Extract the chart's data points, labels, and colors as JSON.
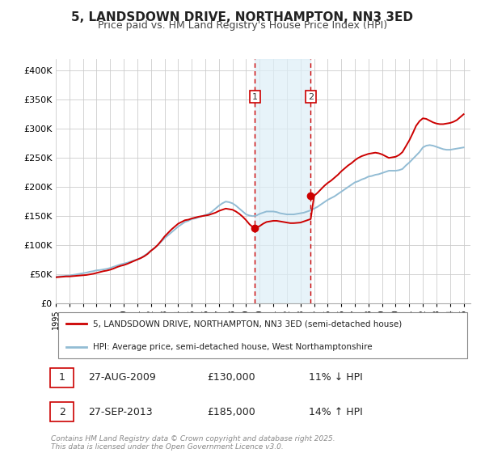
{
  "title": "5, LANDSDOWN DRIVE, NORTHAMPTON, NN3 3ED",
  "subtitle": "Price paid vs. HM Land Registry's House Price Index (HPI)",
  "title_fontsize": 11,
  "subtitle_fontsize": 9,
  "ylim": [
    0,
    420000
  ],
  "xlim": [
    1995,
    2025.5
  ],
  "background_color": "#ffffff",
  "plot_bg_color": "#ffffff",
  "grid_color": "#cccccc",
  "legend_label_red": "5, LANDSDOWN DRIVE, NORTHAMPTON, NN3 3ED (semi-detached house)",
  "legend_label_blue": "HPI: Average price, semi-detached house, West Northamptonshire",
  "red_color": "#cc0000",
  "blue_color": "#92bcd4",
  "event1_x": 2009.65,
  "event2_x": 2013.74,
  "event1_price": 130000,
  "event2_price": 185000,
  "footer_text": "Contains HM Land Registry data © Crown copyright and database right 2025.\nThis data is licensed under the Open Government Licence v3.0.",
  "table_rows": [
    [
      "1",
      "27-AUG-2009",
      "£130,000",
      "11% ↓ HPI"
    ],
    [
      "2",
      "27-SEP-2013",
      "£185,000",
      "14% ↑ HPI"
    ]
  ],
  "yticks": [
    0,
    50000,
    100000,
    150000,
    200000,
    250000,
    300000,
    350000,
    400000
  ],
  "ytick_labels": [
    "£0",
    "£50K",
    "£100K",
    "£150K",
    "£200K",
    "£250K",
    "£300K",
    "£350K",
    "£400K"
  ],
  "hpi_years": [
    1995.0,
    1995.25,
    1995.5,
    1995.75,
    1996.0,
    1996.25,
    1996.5,
    1996.75,
    1997.0,
    1997.25,
    1997.5,
    1997.75,
    1998.0,
    1998.25,
    1998.5,
    1998.75,
    1999.0,
    1999.25,
    1999.5,
    1999.75,
    2000.0,
    2000.25,
    2000.5,
    2000.75,
    2001.0,
    2001.25,
    2001.5,
    2001.75,
    2002.0,
    2002.25,
    2002.5,
    2002.75,
    2003.0,
    2003.25,
    2003.5,
    2003.75,
    2004.0,
    2004.25,
    2004.5,
    2004.75,
    2005.0,
    2005.25,
    2005.5,
    2005.75,
    2006.0,
    2006.25,
    2006.5,
    2006.75,
    2007.0,
    2007.25,
    2007.5,
    2007.75,
    2008.0,
    2008.25,
    2008.5,
    2008.75,
    2009.0,
    2009.25,
    2009.5,
    2009.75,
    2010.0,
    2010.25,
    2010.5,
    2010.75,
    2011.0,
    2011.25,
    2011.5,
    2011.75,
    2012.0,
    2012.25,
    2012.5,
    2012.75,
    2013.0,
    2013.25,
    2013.5,
    2013.75,
    2014.0,
    2014.25,
    2014.5,
    2014.75,
    2015.0,
    2015.25,
    2015.5,
    2015.75,
    2016.0,
    2016.25,
    2016.5,
    2016.75,
    2017.0,
    2017.25,
    2017.5,
    2017.75,
    2018.0,
    2018.25,
    2018.5,
    2018.75,
    2019.0,
    2019.25,
    2019.5,
    2019.75,
    2020.0,
    2020.25,
    2020.5,
    2020.75,
    2021.0,
    2021.25,
    2021.5,
    2021.75,
    2022.0,
    2022.25,
    2022.5,
    2022.75,
    2023.0,
    2023.25,
    2023.5,
    2023.75,
    2024.0,
    2024.25,
    2024.5,
    2024.75,
    2025.0
  ],
  "hpi_vals": [
    46000,
    46500,
    47000,
    47500,
    48000,
    49000,
    50000,
    51000,
    52000,
    53000,
    54500,
    55500,
    57000,
    57500,
    58500,
    59500,
    61000,
    63000,
    65000,
    67000,
    68500,
    70000,
    72000,
    74000,
    76000,
    78000,
    82000,
    86000,
    91000,
    95000,
    100000,
    106000,
    112000,
    117000,
    122000,
    127000,
    132000,
    136000,
    140000,
    142000,
    145000,
    146000,
    148000,
    150000,
    152000,
    154000,
    158000,
    163000,
    168000,
    172000,
    175000,
    174000,
    172000,
    168000,
    163000,
    158000,
    153000,
    151000,
    150000,
    151000,
    154000,
    156000,
    158000,
    158000,
    158000,
    157000,
    155000,
    154000,
    153000,
    153000,
    153000,
    154000,
    155000,
    156000,
    158000,
    160000,
    163000,
    166000,
    170000,
    174000,
    178000,
    181000,
    184000,
    188000,
    192000,
    196000,
    200000,
    204000,
    208000,
    210000,
    213000,
    215000,
    218000,
    219000,
    221000,
    222000,
    224000,
    226000,
    228000,
    228000,
    228000,
    229000,
    231000,
    237000,
    242000,
    248000,
    254000,
    260000,
    268000,
    271000,
    272000,
    271000,
    269000,
    267000,
    265000,
    264000,
    264000,
    265000,
    266000,
    267000,
    268000
  ],
  "price_years": [
    1995.0,
    1995.25,
    1995.5,
    1995.75,
    1996.0,
    1996.25,
    1996.5,
    1996.75,
    1997.0,
    1997.25,
    1997.5,
    1997.75,
    1998.0,
    1998.25,
    1998.5,
    1998.75,
    1999.0,
    1999.25,
    1999.5,
    1999.75,
    2000.0,
    2000.25,
    2000.5,
    2000.75,
    2001.0,
    2001.25,
    2001.5,
    2001.75,
    2002.0,
    2002.25,
    2002.5,
    2002.75,
    2003.0,
    2003.25,
    2003.5,
    2003.75,
    2004.0,
    2004.25,
    2004.5,
    2004.75,
    2005.0,
    2005.25,
    2005.5,
    2005.75,
    2006.0,
    2006.25,
    2006.5,
    2006.75,
    2007.0,
    2007.25,
    2007.5,
    2007.75,
    2008.0,
    2008.25,
    2008.5,
    2008.75,
    2009.0,
    2009.25,
    2009.5,
    2009.75,
    2010.0,
    2010.25,
    2010.5,
    2010.75,
    2011.0,
    2011.25,
    2011.5,
    2011.75,
    2012.0,
    2012.25,
    2012.5,
    2012.75,
    2013.0,
    2013.25,
    2013.5,
    2013.75,
    2014.0,
    2014.25,
    2014.5,
    2014.75,
    2015.0,
    2015.25,
    2015.5,
    2015.75,
    2016.0,
    2016.25,
    2016.5,
    2016.75,
    2017.0,
    2017.25,
    2017.5,
    2017.75,
    2018.0,
    2018.25,
    2018.5,
    2018.75,
    2019.0,
    2019.25,
    2019.5,
    2019.75,
    2020.0,
    2020.25,
    2020.5,
    2020.75,
    2021.0,
    2021.25,
    2021.5,
    2021.75,
    2022.0,
    2022.25,
    2022.5,
    2022.75,
    2023.0,
    2023.25,
    2023.5,
    2023.75,
    2024.0,
    2024.25,
    2024.5,
    2024.75,
    2025.0
  ],
  "price_vals": [
    45000,
    45500,
    46000,
    46500,
    46500,
    47000,
    47500,
    48000,
    48500,
    49000,
    50000,
    51000,
    52500,
    54000,
    55500,
    56500,
    58000,
    60000,
    62500,
    64500,
    66000,
    68000,
    70500,
    73000,
    75500,
    78000,
    81000,
    85000,
    90500,
    95000,
    100500,
    107500,
    115000,
    121000,
    127000,
    132000,
    137000,
    140000,
    143000,
    144000,
    146000,
    147500,
    149000,
    150000,
    151000,
    152000,
    154000,
    156000,
    159000,
    161000,
    163000,
    162000,
    161000,
    158000,
    154000,
    149000,
    143000,
    136000,
    131000,
    130500,
    133000,
    137000,
    140000,
    141000,
    142000,
    142000,
    141000,
    140000,
    139000,
    138000,
    138000,
    138500,
    139000,
    141000,
    143000,
    145000,
    185000,
    190000,
    196000,
    202000,
    207000,
    211000,
    216000,
    221000,
    227000,
    232000,
    237000,
    241000,
    246000,
    250000,
    253000,
    255000,
    257000,
    258000,
    259000,
    258000,
    256000,
    253000,
    250000,
    251000,
    252000,
    255000,
    260000,
    270000,
    280000,
    292000,
    305000,
    313000,
    318000,
    317000,
    314000,
    311000,
    309000,
    308000,
    308000,
    309000,
    310000,
    312000,
    315000,
    320000,
    325000
  ]
}
